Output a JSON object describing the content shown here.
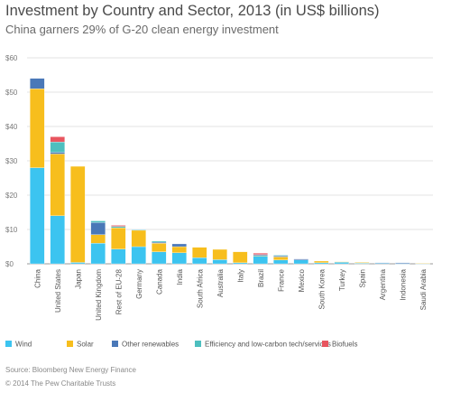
{
  "title": "Investment by Country and Sector, 2013 (in US$ billions)",
  "subtitle": "China garners 29% of G-20 clean energy investment",
  "source": "Source: Bloomberg New Energy Finance",
  "copyright": "© 2014 The Pew Charitable Trusts",
  "chart_data": {
    "type": "bar",
    "stacked": true,
    "grid": true,
    "legend_position": "bottom",
    "ylim": [
      0,
      60
    ],
    "yticks": [
      "$0",
      "$10",
      "$20",
      "$30",
      "$40",
      "$50",
      "$60"
    ],
    "categories": [
      "China",
      "United States",
      "Japan",
      "United Kingdom",
      "Rest of EU-28",
      "Germany",
      "Canada",
      "India",
      "South Africa",
      "Australia",
      "Italy",
      "Brazil",
      "France",
      "Mexico",
      "South Korea",
      "Turkey",
      "Spain",
      "Argentina",
      "Indonesia",
      "Saudi Arabia"
    ],
    "series": [
      {
        "name": "Wind",
        "color": "#3cc4f0",
        "values": [
          28,
          14,
          0.4,
          6,
          4.3,
          5,
          3.5,
          3.2,
          1.8,
          1.2,
          0.3,
          2.3,
          1.1,
          1.1,
          0.3,
          0.5,
          0.2,
          0.2,
          0.1,
          0.1
        ]
      },
      {
        "name": "Solar",
        "color": "#f7be1d",
        "values": [
          23,
          18,
          28,
          2.5,
          6.2,
          4.8,
          2.5,
          1.8,
          3,
          3,
          3.2,
          0.1,
          0.9,
          0,
          0.5,
          0.1,
          0.2,
          0,
          0,
          0.1
        ]
      },
      {
        "name": "Other renewables",
        "color": "#4a78b8",
        "values": [
          3,
          0.5,
          0,
          3.5,
          0,
          0,
          0.3,
          0.8,
          0,
          0,
          0,
          0.3,
          0.3,
          0.3,
          0,
          0,
          0,
          0.1,
          0.2,
          0
        ]
      },
      {
        "name": "Efficiency and low-carbon tech/services",
        "color": "#4dbfbf",
        "values": [
          0,
          3,
          0,
          0.5,
          0.4,
          0.1,
          0.3,
          0,
          0,
          0,
          0,
          0,
          0.2,
          0,
          0,
          0,
          0,
          0,
          0,
          0
        ]
      },
      {
        "name": "Biofuels",
        "color": "#e8555f",
        "values": [
          0,
          1.5,
          0,
          0,
          0.3,
          0,
          0,
          0,
          0,
          0,
          0,
          0.4,
          0,
          0,
          0,
          0,
          0,
          0,
          0,
          0
        ]
      }
    ]
  }
}
